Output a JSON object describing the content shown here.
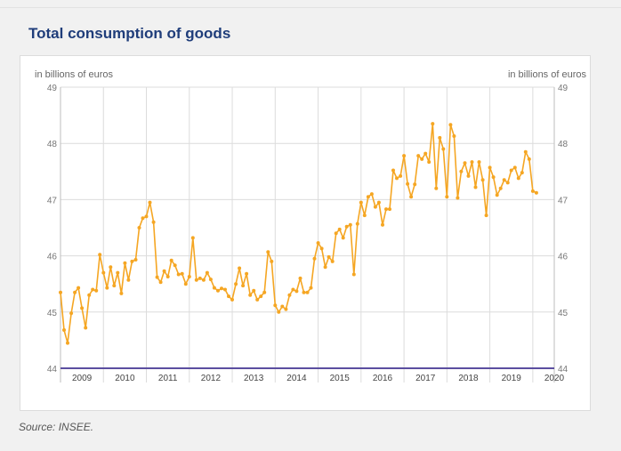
{
  "page": {
    "title": "Total consumption of goods",
    "source": "Source: INSEE."
  },
  "colors": {
    "series": "#f5a623",
    "baseline": "#5b4ea0",
    "grid": "#dcdcdc",
    "title": "#1f3d7a"
  },
  "chart_data": {
    "type": "line",
    "title": "Total consumption of goods",
    "ylabel_left": "in billions of euros",
    "ylabel_right": "in billions of euros",
    "ylim": [
      44,
      49
    ],
    "yticks": [
      44,
      45,
      46,
      47,
      48,
      49
    ],
    "xlim": [
      2009,
      2020.5
    ],
    "years": [
      "2009",
      "2010",
      "2011",
      "2012",
      "2013",
      "2014",
      "2015",
      "2016",
      "2017",
      "2018",
      "2019",
      "2020"
    ],
    "grid": true,
    "series": [
      {
        "name": "Total consumption of goods",
        "start": "2009-01",
        "frequency": "monthly",
        "values": [
          45.35,
          44.68,
          44.45,
          44.98,
          45.35,
          45.43,
          45.07,
          44.72,
          45.3,
          45.4,
          45.38,
          46.02,
          45.7,
          45.43,
          45.8,
          45.47,
          45.7,
          45.33,
          45.87,
          45.57,
          45.9,
          45.93,
          46.5,
          46.67,
          46.7,
          46.95,
          46.6,
          45.62,
          45.53,
          45.73,
          45.63,
          45.92,
          45.83,
          45.67,
          45.68,
          45.5,
          45.63,
          46.32,
          45.57,
          45.6,
          45.57,
          45.7,
          45.58,
          45.43,
          45.38,
          45.42,
          45.4,
          45.28,
          45.22,
          45.5,
          45.78,
          45.47,
          45.68,
          45.3,
          45.38,
          45.22,
          45.28,
          45.35,
          46.07,
          45.9,
          45.12,
          45.0,
          45.1,
          45.05,
          45.3,
          45.4,
          45.37,
          45.6,
          45.35,
          45.35,
          45.43,
          45.95,
          46.23,
          46.13,
          45.8,
          45.98,
          45.9,
          46.4,
          46.47,
          46.32,
          46.52,
          46.55,
          45.67,
          46.57,
          46.95,
          46.72,
          47.05,
          47.1,
          46.87,
          46.95,
          46.55,
          46.83,
          46.83,
          47.52,
          47.38,
          47.42,
          47.78,
          47.28,
          47.05,
          47.27,
          47.78,
          47.72,
          47.82,
          47.67,
          48.35,
          47.2,
          48.1,
          47.9,
          47.05,
          48.33,
          48.13,
          47.03,
          47.5,
          47.65,
          47.42,
          47.67,
          47.22,
          47.67,
          47.35,
          46.72,
          47.57,
          47.4,
          47.08,
          47.2,
          47.35,
          47.3,
          47.52,
          47.57,
          47.38,
          47.48,
          47.85,
          47.72,
          47.15,
          47.12
        ]
      }
    ]
  }
}
